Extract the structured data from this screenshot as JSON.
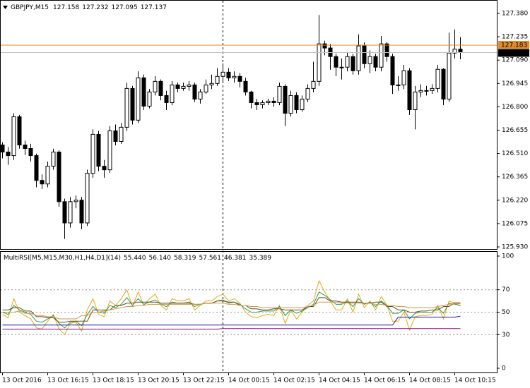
{
  "chart_data": [
    {
      "type": "candlestick",
      "symbol": "GBPJPY,M15",
      "categories": [
        "13 Oct 2016",
        null,
        null,
        null,
        null,
        null,
        null,
        null,
        "13 Oct 16:15",
        null,
        null,
        null,
        null,
        null,
        null,
        null,
        "13 Oct 18:15",
        null,
        null,
        null,
        null,
        null,
        null,
        null,
        "13 Oct 20:15",
        null,
        null,
        null,
        null,
        null,
        null,
        null,
        "13 Oct 22:15",
        null,
        null,
        null,
        null,
        null,
        null,
        null,
        "14 Oct 00:15",
        null,
        null,
        null,
        null,
        null,
        null,
        null,
        "14 Oct 02:15",
        null,
        null,
        null,
        null,
        null,
        null,
        null,
        "14 Oct 04:15",
        null,
        null,
        null,
        null,
        null,
        null,
        null,
        "14 Oct 06:15",
        null,
        null,
        null,
        null,
        null,
        null,
        null,
        "14 Oct 08:15",
        null,
        null,
        null,
        null,
        null,
        null,
        null,
        "14 Oct 10:15",
        null
      ],
      "open": [
        126.563,
        126.519,
        126.497,
        126.738,
        126.563,
        126.541,
        126.497,
        126.343,
        126.321,
        126.431,
        126.519,
        126.211,
        126.079,
        126.211,
        126.22,
        126.079,
        126.387,
        126.629,
        126.431,
        126.409,
        126.651,
        126.585,
        126.673,
        126.914,
        126.717,
        126.98,
        126.804,
        126.892,
        126.958,
        126.87,
        126.826,
        126.936,
        126.914,
        126.927,
        126.936,
        126.848,
        126.892,
        126.936,
        126.945,
        126.989,
        127.015,
        126.98,
        126.989,
        126.958,
        126.892,
        126.826,
        126.813,
        126.826,
        126.835,
        126.826,
        126.927,
        126.76,
        126.87,
        126.782,
        126.848,
        126.914,
        126.958,
        127.191,
        127.165,
        127.112,
        127.046,
        127.046,
        127.112,
        127.024,
        127.178,
        127.068,
        127.112,
        127.046,
        127.191,
        127.112,
        126.936,
        126.936,
        127.024,
        126.782,
        126.892,
        126.901,
        126.901,
        126.914,
        127.033,
        126.848,
        127.134,
        127.158
      ],
      "high": [
        126.58,
        126.55,
        126.76,
        126.75,
        126.59,
        126.57,
        126.51,
        126.38,
        126.46,
        126.54,
        126.53,
        126.23,
        126.24,
        126.25,
        126.24,
        126.41,
        126.66,
        126.65,
        126.47,
        126.68,
        126.69,
        126.7,
        126.95,
        126.93,
        127.02,
        127.0,
        126.91,
        126.99,
        126.97,
        126.9,
        126.96,
        126.95,
        126.95,
        126.96,
        126.95,
        126.91,
        126.97,
        127.0,
        127.04,
        127.07,
        127.04,
        127.02,
        127.01,
        126.98,
        126.9,
        126.85,
        126.84,
        126.85,
        126.86,
        126.95,
        126.94,
        126.9,
        126.89,
        126.87,
        126.94,
        127.08,
        127.37,
        127.21,
        127.19,
        127.13,
        127.1,
        127.14,
        127.13,
        127.25,
        127.2,
        127.15,
        127.13,
        127.24,
        127.2,
        127.13,
        126.99,
        127.06,
        127.04,
        126.93,
        126.94,
        126.93,
        126.94,
        127.06,
        127.04,
        127.26,
        127.28,
        127.232
      ],
      "low": [
        126.48,
        126.44,
        126.47,
        126.54,
        126.5,
        126.46,
        126.3,
        126.29,
        126.3,
        126.41,
        126.18,
        125.98,
        126.05,
        126.17,
        126.04,
        126.06,
        126.36,
        126.4,
        126.36,
        126.39,
        126.56,
        126.57,
        126.65,
        126.69,
        126.7,
        126.78,
        126.79,
        126.87,
        126.84,
        126.78,
        126.81,
        126.89,
        126.9,
        126.9,
        126.83,
        126.82,
        126.88,
        126.91,
        126.93,
        126.96,
        126.96,
        126.95,
        126.92,
        126.87,
        126.79,
        126.78,
        126.79,
        126.81,
        126.8,
        126.81,
        126.68,
        126.74,
        126.76,
        126.77,
        126.83,
        126.89,
        126.93,
        127.12,
        127.03,
        126.99,
        126.97,
        127.02,
        127.0,
        127.0,
        127.04,
        127.01,
        127.02,
        127.02,
        127.08,
        126.88,
        126.9,
        126.91,
        126.75,
        126.66,
        126.86,
        126.87,
        126.88,
        126.89,
        126.81,
        126.83,
        127.1,
        127.095
      ],
      "close": [
        126.519,
        126.497,
        126.738,
        126.563,
        126.541,
        126.497,
        126.343,
        126.321,
        126.431,
        126.519,
        126.211,
        126.079,
        126.211,
        126.22,
        126.079,
        126.387,
        126.629,
        126.431,
        126.409,
        126.651,
        126.585,
        126.673,
        126.914,
        126.717,
        126.98,
        126.804,
        126.892,
        126.958,
        126.87,
        126.826,
        126.936,
        126.914,
        126.927,
        126.936,
        126.848,
        126.892,
        126.936,
        126.945,
        126.989,
        127.015,
        126.98,
        126.989,
        126.958,
        126.892,
        126.826,
        126.813,
        126.826,
        126.835,
        126.826,
        126.927,
        126.76,
        126.87,
        126.782,
        126.848,
        126.914,
        126.958,
        127.191,
        127.165,
        127.112,
        127.046,
        127.046,
        127.112,
        127.024,
        127.178,
        127.068,
        127.112,
        127.046,
        127.191,
        127.112,
        126.936,
        126.936,
        127.024,
        126.782,
        126.892,
        126.901,
        126.901,
        126.914,
        127.033,
        126.848,
        127.134,
        127.158,
        127.137
      ],
      "ask": 127.183,
      "ask_color": "#e08a2c",
      "bid_color": "#c0c0c0",
      "up_color": "#ffffff",
      "down_color": "#000000",
      "ylim": [
        125.93,
        127.38
      ],
      "yticks": [
        {
          "value": 127.38,
          "label": "127.380"
        },
        127.235,
        {
          "value": 127.09,
          "label": "127.090"
        },
        126.945,
        {
          "value": 126.8,
          "label": "126.800"
        },
        126.655,
        {
          "value": 126.51,
          "label": "126.510"
        },
        126.365,
        {
          "value": 126.22,
          "label": "126.220"
        },
        126.075,
        {
          "value": 125.93,
          "label": "125.930"
        }
      ]
    },
    {
      "type": "line",
      "title": "MultiRSI[M5,M15,M30,H1,H4,D1](14)",
      "ylim": [
        0,
        100
      ],
      "yticks": [
        100,
        70,
        50,
        30,
        0
      ],
      "grid_levels": [
        70,
        50,
        30
      ],
      "series": [
        {
          "color": "#e8a81a",
          "last_label": "55.440",
          "values": [
            48,
            45,
            62,
            50,
            47,
            44,
            36,
            35,
            42,
            48,
            35,
            30,
            40,
            41,
            33,
            52,
            62,
            48,
            46,
            60,
            56,
            62,
            70,
            55,
            68,
            56,
            62,
            66,
            56,
            52,
            62,
            60,
            60,
            62,
            52,
            56,
            60,
            60,
            64,
            66,
            60,
            62,
            58,
            50,
            46,
            45,
            47,
            48,
            47,
            56,
            40,
            52,
            44,
            50,
            56,
            60,
            78,
            68,
            60,
            52,
            52,
            62,
            50,
            66,
            54,
            60,
            52,
            64,
            56,
            42,
            42,
            50,
            34,
            46,
            47,
            47,
            48,
            56,
            44,
            60,
            58,
            55.44
          ]
        },
        {
          "color": "#2e9a55",
          "last_label": "56.140",
          "values": [
            50,
            48,
            56,
            52,
            50,
            48,
            42,
            41,
            44,
            47,
            40,
            36,
            41,
            42,
            38,
            48,
            55,
            50,
            49,
            56,
            54,
            57,
            63,
            56,
            62,
            57,
            59,
            61,
            57,
            55,
            59,
            58,
            58,
            59,
            55,
            57,
            58,
            58,
            60,
            61,
            58,
            59,
            57,
            53,
            50,
            50,
            51,
            51,
            51,
            55,
            47,
            52,
            49,
            51,
            54,
            57,
            68,
            65,
            61,
            57,
            57,
            60,
            55,
            62,
            57,
            59,
            55,
            60,
            56,
            49,
            49,
            52,
            44,
            49,
            50,
            50,
            50,
            54,
            49,
            58,
            57,
            56.14
          ]
        },
        {
          "color": "#6b4a1a",
          "last_label": "58.319",
          "values": [
            52,
            52,
            54,
            54,
            51,
            51,
            46,
            46,
            45,
            45,
            41,
            41,
            42,
            42,
            42,
            42,
            52,
            52,
            52,
            52,
            56,
            56,
            58,
            58,
            59,
            59,
            59,
            59,
            58,
            58,
            58,
            58,
            58,
            58,
            57,
            57,
            58,
            58,
            60,
            60,
            59,
            59,
            56,
            56,
            53,
            53,
            52,
            52,
            53,
            53,
            52,
            52,
            52,
            52,
            55,
            55,
            63,
            63,
            60,
            60,
            59,
            59,
            59,
            59,
            58,
            58,
            59,
            59,
            55,
            55,
            52,
            52,
            50,
            50,
            51,
            51,
            52,
            52,
            55,
            55,
            58.319,
            58.319
          ]
        },
        {
          "color": "#c89a50",
          "last_label": "57.561",
          "values": [
            50,
            50,
            50,
            51,
            49,
            49,
            47,
            47,
            46,
            46,
            44,
            44,
            44,
            44,
            47,
            47,
            50,
            50,
            51,
            52,
            53,
            54,
            55,
            55,
            56,
            56,
            57,
            57,
            57,
            57,
            57,
            57,
            57,
            57,
            57,
            57,
            58,
            58,
            58,
            58,
            57,
            57,
            56,
            56,
            55,
            55,
            54,
            54,
            54,
            54,
            54,
            54,
            54,
            54,
            55,
            56,
            59,
            59,
            59,
            59,
            58,
            58,
            58,
            58,
            58,
            58,
            57,
            57,
            56,
            56,
            55,
            55,
            54,
            54,
            54,
            54,
            54,
            55,
            56,
            57,
            57.5,
            57.561
          ]
        },
        {
          "color": "#1a1aa0",
          "last_label": "46.381",
          "values": [
            38.5,
            38.5,
            38.5,
            38.5,
            38.5,
            38.5,
            38.5,
            38.5,
            38.5,
            38.5,
            38.5,
            38.5,
            38.5,
            38.5,
            38.5,
            38.5,
            38.5,
            38.5,
            38.5,
            38.5,
            38.5,
            38.5,
            38.5,
            38.5,
            38.5,
            38.5,
            38.5,
            38.5,
            38.5,
            38.5,
            38.5,
            38.5,
            38.5,
            38.5,
            38.5,
            38.5,
            38.5,
            38.5,
            38.5,
            38.5,
            38.5,
            38.5,
            38.5,
            38.5,
            38.5,
            38.5,
            38.5,
            38.5,
            38.5,
            38.5,
            38.5,
            38.5,
            38.5,
            38.5,
            38.5,
            38.5,
            38.5,
            38.5,
            38.5,
            38.5,
            38.5,
            38.5,
            38.5,
            38.5,
            38.5,
            38.5,
            38.5,
            38.5,
            38.5,
            38.5,
            45.6,
            45.6,
            45.6,
            45.6,
            45.6,
            45.6,
            45.6,
            45.6,
            45.6,
            45.6,
            45.6,
            46.381
          ]
        },
        {
          "color": "#800080",
          "last_label": "35.389",
          "values": [
            34.9,
            34.9,
            34.9,
            34.9,
            34.9,
            34.9,
            34.9,
            34.9,
            34.9,
            34.9,
            34.9,
            34.9,
            34.9,
            34.9,
            34.9,
            34.9,
            34.9,
            34.9,
            34.9,
            34.9,
            34.9,
            34.9,
            34.9,
            34.9,
            34.9,
            34.9,
            34.9,
            34.9,
            34.9,
            34.9,
            34.9,
            34.9,
            34.9,
            34.9,
            34.9,
            34.9,
            34.9,
            34.9,
            34.9,
            35.389,
            35.389,
            35.389,
            35.389,
            35.389,
            35.389,
            35.389,
            35.389,
            35.389,
            35.389,
            35.389,
            35.389,
            35.389,
            35.389,
            35.389,
            35.389,
            35.389,
            35.389,
            35.389,
            35.389,
            35.389,
            35.389,
            35.389,
            35.389,
            35.389,
            35.389,
            35.389,
            35.389,
            35.389,
            35.389,
            35.389,
            35.389,
            35.389,
            35.389,
            35.389,
            35.389,
            35.389,
            35.389,
            35.389,
            35.389,
            35.389,
            35.389,
            35.389
          ]
        }
      ]
    }
  ]
}
